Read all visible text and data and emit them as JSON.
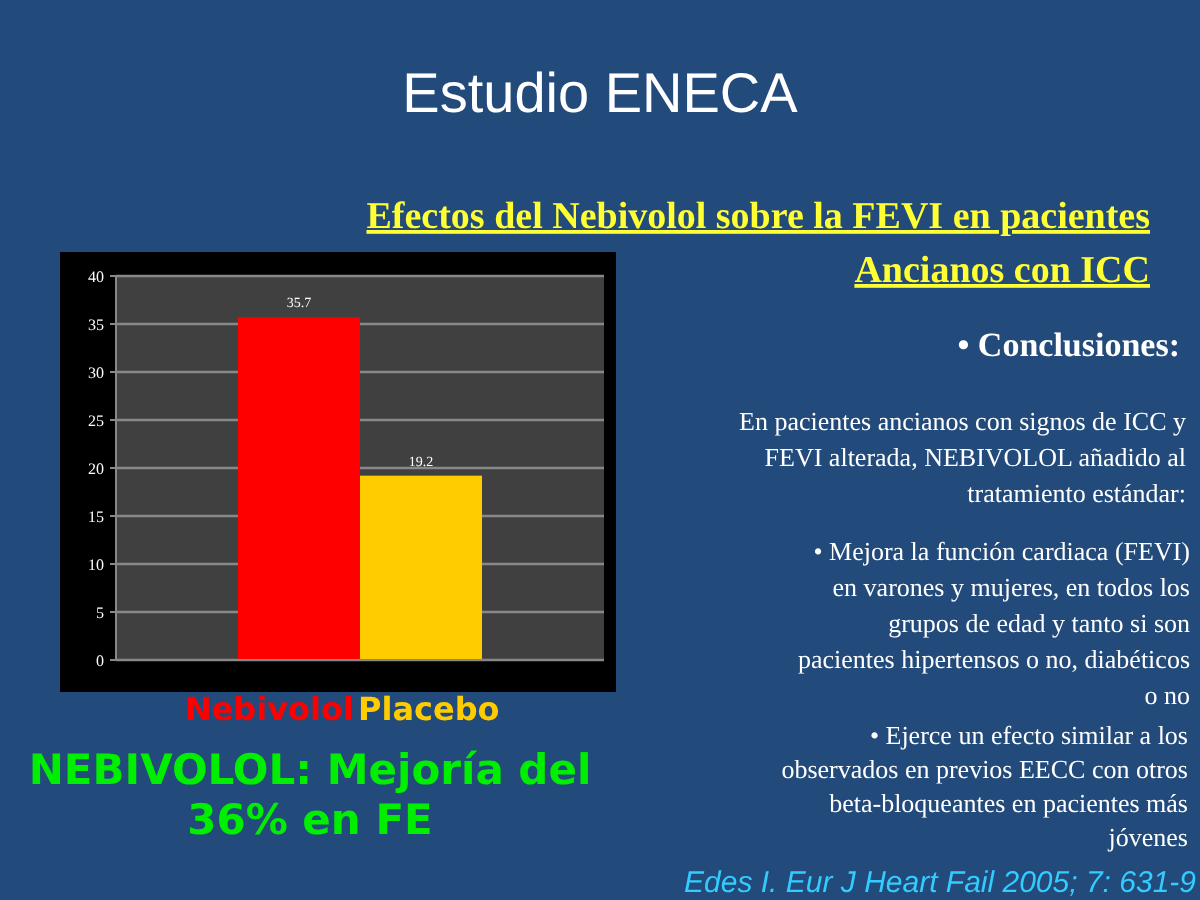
{
  "chart_data": {
    "type": "bar",
    "title": "Estudio ENECA",
    "subtitle": "Efectos del Nebivolol sobre la FEVI en pacientes\nAncianos con ICC",
    "categories": [
      "Nebivolol",
      "Placebo"
    ],
    "values": [
      35.7,
      19.2
    ],
    "colors": [
      "#ff0000",
      "#ffcc00"
    ],
    "ylim": [
      0,
      40
    ],
    "yticks": [
      0,
      5,
      10,
      15,
      20,
      25,
      30,
      35,
      40
    ],
    "grid": "y",
    "data_labels": true,
    "annotations": [
      "• Conclusiones:",
      "En pacientes ancianos con signos de ICC y\nFEVI alterada, NEBIVOLOL añadido al\ntratamiento estándar:",
      "• Mejora la función cardiaca (FEVI)\nen varones y mujeres, en todos los\ngrupos de edad y tanto si son\npacientes hipertensos o no, diabéticos\no no",
      "• Ejerce un efecto similar a los\nobservados en previos EECC con otros\nbeta-bloqueantes en pacientes más\njóvenes",
      "NEBIVOLOL: Mejoría del\n36% en FE",
      "Edes I. Eur J Heart Fail 2005; 7: 631-9"
    ]
  }
}
